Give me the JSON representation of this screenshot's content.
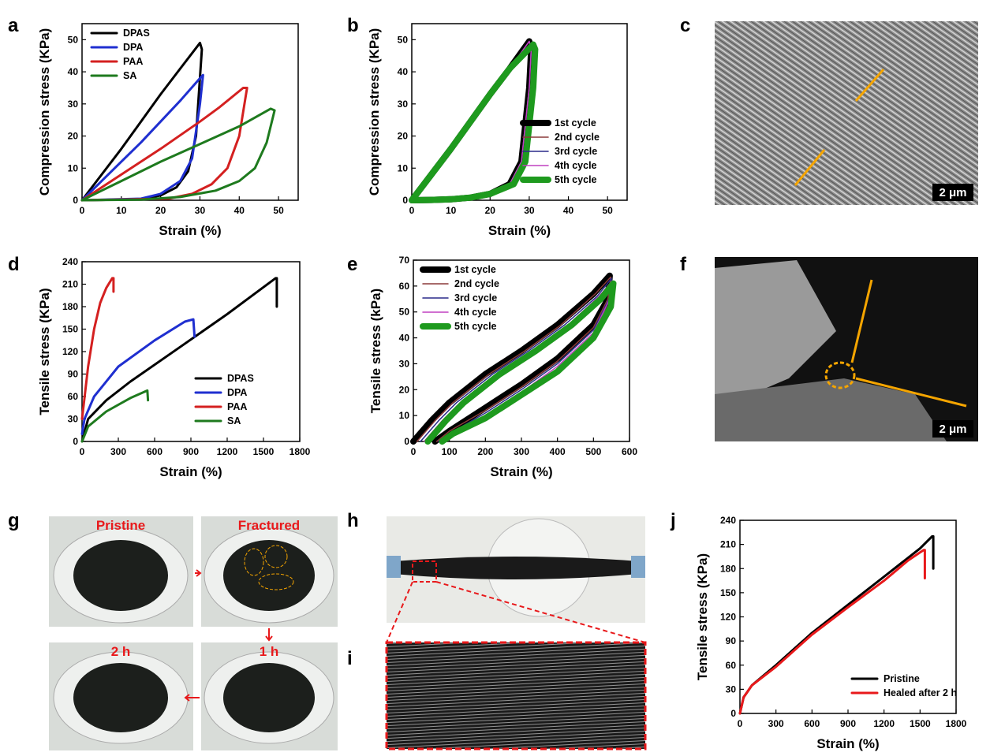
{
  "chart_data": [
    {
      "type": "line",
      "xlabel": "Strain (%)",
      "ylabel": "Compression stress (KPa)",
      "xlim": [
        0,
        55
      ],
      "ylim": [
        0,
        55
      ],
      "xticks": [
        0,
        10,
        20,
        30,
        40,
        50
      ],
      "yticks": [
        0,
        10,
        20,
        30,
        40,
        50
      ],
      "legend": "upper left",
      "series": [
        {
          "name": "DPAS",
          "color": "#000000",
          "line_width": 3,
          "x": [
            0,
            5,
            10,
            15,
            20,
            25,
            30,
            30.5,
            29,
            27,
            24,
            20,
            15,
            0
          ],
          "values": [
            0,
            8,
            16,
            24.5,
            33,
            41,
            49,
            47,
            20,
            9,
            4,
            1.5,
            0.3,
            0
          ]
        },
        {
          "name": "DPA",
          "color": "#1f2fd0",
          "line_width": 3,
          "x": [
            0,
            5,
            10,
            15,
            20,
            25,
            30,
            30.8,
            30,
            28,
            25,
            20,
            15,
            0
          ],
          "values": [
            0,
            6,
            12,
            18,
            24.5,
            31,
            38,
            39,
            30,
            13,
            6,
            2,
            0.5,
            0
          ]
        },
        {
          "name": "PAA",
          "color": "#d42020",
          "line_width": 3,
          "x": [
            0,
            10,
            20,
            30,
            35,
            41,
            42,
            40,
            37,
            33,
            28,
            22,
            0
          ],
          "values": [
            0,
            8,
            16,
            24.5,
            29,
            35,
            35,
            20,
            10,
            5,
            2,
            0.5,
            0
          ]
        },
        {
          "name": "SA",
          "color": "#1e7a1e",
          "line_width": 3,
          "x": [
            0,
            10,
            20,
            30,
            40,
            48,
            49,
            47,
            44,
            40,
            34,
            25,
            15,
            0
          ],
          "values": [
            0,
            6,
            12,
            17.5,
            23,
            28.5,
            28,
            18,
            10,
            6,
            3,
            1,
            0.2,
            0
          ]
        }
      ]
    },
    {
      "type": "line",
      "xlabel": "Strain (%)",
      "ylabel": "Compression stress (KPa)",
      "xlim": [
        0,
        55
      ],
      "ylim": [
        0,
        55
      ],
      "xticks": [
        0,
        10,
        20,
        30,
        40,
        50
      ],
      "yticks": [
        0,
        10,
        20,
        30,
        40,
        50
      ],
      "legend": "lower right",
      "series": [
        {
          "name": "1st cycle",
          "color": "#000000",
          "line_width": 8,
          "x": [
            0,
            5,
            10,
            15,
            20,
            25,
            30,
            30.5,
            30,
            28,
            25,
            20,
            15,
            10,
            5,
            0
          ],
          "values": [
            0,
            8,
            16,
            24.5,
            33,
            41,
            49.5,
            47,
            35,
            12,
            5,
            2,
            0.8,
            0.3,
            0.1,
            0
          ]
        },
        {
          "name": "2nd cycle",
          "color": "#8b3a3a",
          "line_width": 1.5,
          "x": [
            0,
            5,
            10,
            15,
            20,
            25,
            30,
            30.5,
            30,
            28,
            25,
            20,
            15,
            10,
            5,
            0
          ],
          "values": [
            0,
            8,
            16,
            24.5,
            33,
            41,
            49.5,
            47,
            35,
            12,
            5,
            2,
            0.8,
            0.3,
            0.1,
            0
          ]
        },
        {
          "name": "3rd cycle",
          "color": "#2a2a8a",
          "line_width": 1.5,
          "x": [
            0,
            5,
            10,
            15,
            20,
            25,
            30,
            30.5,
            30,
            28,
            25,
            20,
            15,
            10,
            5,
            0
          ],
          "values": [
            0,
            8,
            16,
            24.5,
            33,
            41,
            49.5,
            47,
            35,
            12,
            5,
            2,
            0.8,
            0.3,
            0.1,
            0
          ]
        },
        {
          "name": "4th cycle",
          "color": "#c040c0",
          "line_width": 1.5,
          "x": [
            0,
            5,
            10,
            15,
            20,
            25,
            30,
            30.5,
            30,
            28,
            25,
            20,
            15,
            10,
            5,
            0
          ],
          "values": [
            0,
            8,
            16,
            24.5,
            33,
            41,
            49.5,
            47,
            35,
            12,
            5,
            2,
            0.8,
            0.3,
            0.1,
            0
          ]
        },
        {
          "name": "5th cycle",
          "color": "#1e9a1e",
          "line_width": 8,
          "x": [
            0,
            5,
            10,
            15,
            20,
            25,
            31,
            31.5,
            31,
            29,
            26,
            20,
            15,
            10,
            5,
            0
          ],
          "values": [
            0,
            8,
            16,
            24.5,
            33,
            41,
            48.5,
            47,
            35,
            12,
            5,
            2,
            0.8,
            0.3,
            0.1,
            0
          ]
        }
      ]
    },
    {
      "type": "line",
      "xlabel": "Strain (%)",
      "ylabel": "Tensile stress (KPa)",
      "xlim": [
        0,
        1800
      ],
      "ylim": [
        0,
        240
      ],
      "xticks": [
        0,
        300,
        600,
        900,
        1200,
        1500,
        1800
      ],
      "yticks": [
        0,
        30,
        60,
        90,
        120,
        150,
        180,
        210,
        240
      ],
      "legend": "lower right",
      "series": [
        {
          "name": "DPAS",
          "color": "#000000",
          "line_width": 3,
          "x": [
            0,
            50,
            200,
            400,
            800,
            1200,
            1600,
            1610,
            1610
          ],
          "values": [
            0,
            30,
            55,
            80,
            125,
            170,
            218,
            218,
            180
          ]
        },
        {
          "name": "DPA",
          "color": "#1f2fd0",
          "line_width": 3,
          "x": [
            0,
            20,
            100,
            300,
            600,
            850,
            920,
            930
          ],
          "values": [
            10,
            30,
            60,
            100,
            135,
            160,
            163,
            140
          ]
        },
        {
          "name": "PAA",
          "color": "#d42020",
          "line_width": 3,
          "x": [
            0,
            50,
            100,
            150,
            200,
            250,
            260,
            260
          ],
          "values": [
            30,
            100,
            150,
            185,
            205,
            218,
            218,
            200
          ]
        },
        {
          "name": "SA",
          "color": "#1e7a1e",
          "line_width": 3,
          "x": [
            0,
            50,
            200,
            400,
            540,
            545
          ],
          "values": [
            0,
            20,
            40,
            58,
            68,
            55
          ]
        }
      ]
    },
    {
      "type": "line",
      "xlabel": "Strain (%)",
      "ylabel": "Tensile stress (kPa)",
      "xlim": [
        0,
        600
      ],
      "ylim": [
        0,
        70
      ],
      "xticks": [
        0,
        100,
        200,
        300,
        400,
        500,
        600
      ],
      "yticks": [
        0,
        10,
        20,
        30,
        40,
        50,
        60,
        70
      ],
      "legend": "upper left",
      "series": [
        {
          "name": "1st cycle",
          "color": "#000000",
          "line_width": 8,
          "x": [
            0,
            50,
            100,
            200,
            300,
            400,
            500,
            545,
            540,
            500,
            400,
            300,
            200,
            100,
            60
          ],
          "values": [
            0,
            8,
            15,
            26,
            35,
            45,
            57,
            64,
            55,
            45,
            32,
            22,
            13,
            4,
            0
          ]
        },
        {
          "name": "2nd cycle",
          "color": "#8b3a3a",
          "line_width": 1.5,
          "x": [
            10,
            60,
            110,
            210,
            310,
            410,
            505,
            548,
            540,
            500,
            400,
            300,
            200,
            100,
            65
          ],
          "values": [
            0,
            8,
            15,
            26,
            35,
            45,
            57,
            63.5,
            55,
            44,
            31,
            21,
            12,
            4,
            0
          ]
        },
        {
          "name": "3rd cycle",
          "color": "#2a2a8a",
          "line_width": 1.5,
          "x": [
            20,
            70,
            120,
            220,
            320,
            420,
            510,
            550,
            543,
            500,
            400,
            300,
            200,
            100,
            70
          ],
          "values": [
            0,
            8,
            15,
            26,
            35,
            45,
            56,
            63,
            55,
            43,
            30,
            20,
            11,
            3,
            0
          ]
        },
        {
          "name": "4th cycle",
          "color": "#c040c0",
          "line_width": 1.5,
          "x": [
            30,
            80,
            130,
            230,
            330,
            430,
            515,
            552,
            545,
            500,
            400,
            300,
            200,
            100,
            75
          ],
          "values": [
            0,
            8,
            15,
            26,
            35,
            45,
            56,
            62,
            55,
            42,
            29,
            19,
            10,
            3,
            0
          ]
        },
        {
          "name": "5th cycle",
          "color": "#1e9a1e",
          "line_width": 8,
          "x": [
            40,
            90,
            140,
            240,
            340,
            440,
            520,
            555,
            548,
            500,
            400,
            300,
            200,
            110,
            80
          ],
          "values": [
            0,
            8,
            15,
            26,
            35,
            45,
            55,
            61,
            52,
            40,
            27,
            18,
            9,
            3,
            0
          ]
        }
      ]
    },
    {
      "type": "line",
      "xlabel": "Strain (%)",
      "ylabel": "Tensile stress (KPa)",
      "xlim": [
        0,
        1800
      ],
      "ylim": [
        0,
        240
      ],
      "xticks": [
        0,
        300,
        600,
        900,
        1200,
        1500,
        1800
      ],
      "yticks": [
        0,
        30,
        60,
        90,
        120,
        150,
        180,
        210,
        240
      ],
      "legend": "lower right",
      "series": [
        {
          "name": "Pristine",
          "color": "#000000",
          "line_width": 3,
          "x": [
            0,
            30,
            100,
            300,
            600,
            900,
            1200,
            1500,
            1600,
            1610,
            1610
          ],
          "values": [
            0,
            20,
            35,
            60,
            100,
            135,
            170,
            205,
            220,
            220,
            180
          ]
        },
        {
          "name": "Healed after 2 h",
          "color": "#e8191b",
          "line_width": 3,
          "x": [
            0,
            30,
            100,
            300,
            600,
            900,
            1200,
            1400,
            1500,
            1530,
            1540,
            1540
          ],
          "values": [
            0,
            20,
            35,
            58,
            98,
            132,
            165,
            190,
            200,
            203,
            203,
            168
          ]
        }
      ]
    }
  ],
  "figure": {
    "panel_labels": [
      "a",
      "b",
      "c",
      "d",
      "e",
      "f",
      "g",
      "h",
      "i",
      "j"
    ],
    "scale_bars": [
      "2 μm",
      "2 μm"
    ],
    "photo_labels": [
      "Pristine",
      "Fractured",
      "2 h",
      "1 h"
    ]
  }
}
